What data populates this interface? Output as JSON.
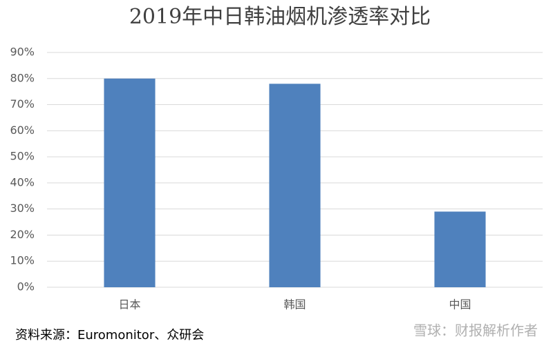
{
  "chart_data": {
    "type": "bar",
    "title": "2019年中日韩油烟机渗透率对比",
    "categories": [
      "日本",
      "韩国",
      "中国"
    ],
    "values": [
      80,
      78,
      29
    ],
    "color": "#4f81bd",
    "ylim": [
      0,
      90
    ],
    "yticks": [
      {
        "value": 0,
        "label": "0%"
      },
      {
        "value": 10,
        "label": "10%"
      },
      {
        "value": 20,
        "label": "20%"
      },
      {
        "value": 30,
        "label": "30%"
      },
      {
        "value": 40,
        "label": "40%"
      },
      {
        "value": 50,
        "label": "50%"
      },
      {
        "value": 60,
        "label": "60%"
      },
      {
        "value": 70,
        "label": "70%"
      },
      {
        "value": 80,
        "label": "80%"
      },
      {
        "value": 90,
        "label": "90%"
      }
    ],
    "grid": true,
    "source": "资料来源：Euromonitor、众研会",
    "watermark": "雪球：财报解析作者"
  }
}
